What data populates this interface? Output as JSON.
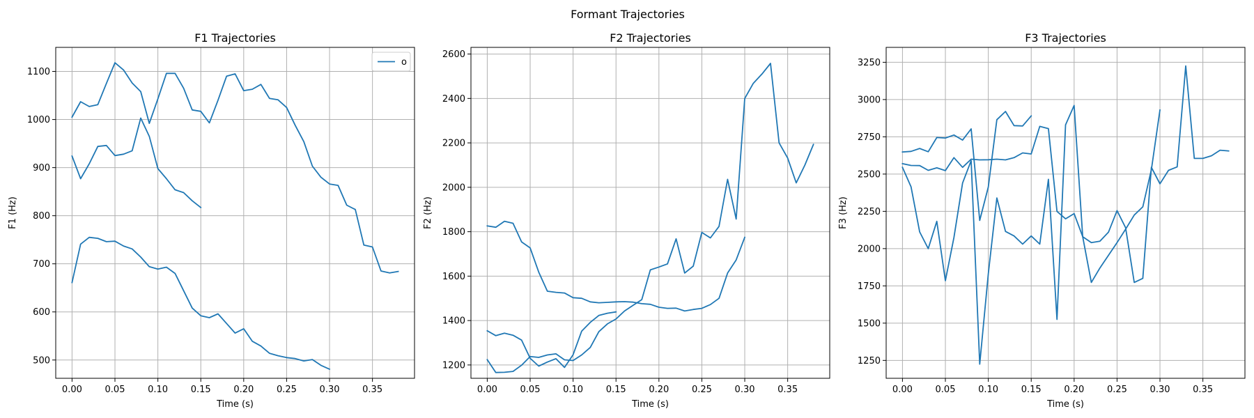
{
  "figure_title": "Formant Trajectories",
  "colors": {
    "series": "#1f77b4",
    "grid": "#b0b0b0"
  },
  "chart_data": [
    {
      "type": "line",
      "title": "F1 Trajectories",
      "xlabel": "Time (s)",
      "ylabel": "F1 (Hz)",
      "xlim": [
        -0.019,
        0.399
      ],
      "ylim": [
        462,
        1150
      ],
      "xticks": [
        0.0,
        0.05,
        0.1,
        0.15,
        0.2,
        0.25,
        0.3,
        0.35
      ],
      "xtick_labels": [
        "0.00",
        "0.05",
        "0.10",
        "0.15",
        "0.20",
        "0.25",
        "0.30",
        "0.35"
      ],
      "yticks": [
        500,
        600,
        700,
        800,
        900,
        1000,
        1100
      ],
      "ytick_labels": [
        "500",
        "600",
        "700",
        "800",
        "900",
        "1000",
        "1100"
      ],
      "grid": true,
      "legend": {
        "position": "top-right",
        "entries": [
          "o"
        ]
      },
      "series": [
        {
          "x": [
            0.0,
            0.01,
            0.02,
            0.03,
            0.04,
            0.05,
            0.06,
            0.07,
            0.08,
            0.09,
            0.1,
            0.11,
            0.12,
            0.13,
            0.14,
            0.15,
            0.16,
            0.17,
            0.18,
            0.19,
            0.2,
            0.21,
            0.22,
            0.23,
            0.24,
            0.25,
            0.26,
            0.27,
            0.28,
            0.29,
            0.3,
            0.31,
            0.32,
            0.33,
            0.34,
            0.35,
            0.36,
            0.37,
            0.38
          ],
          "y": [
            1005,
            1037,
            1027,
            1031,
            1075,
            1118,
            1103,
            1076,
            1058,
            992,
            1043,
            1096,
            1096,
            1065,
            1020,
            1017,
            993,
            1040,
            1090,
            1095,
            1060,
            1063,
            1073,
            1044,
            1041,
            1025,
            988,
            954,
            903,
            880,
            866,
            863,
            822,
            813,
            739,
            735,
            685,
            681,
            684
          ]
        },
        {
          "x": [
            0.0,
            0.01,
            0.02,
            0.03,
            0.04,
            0.05,
            0.06,
            0.07,
            0.08,
            0.09,
            0.1,
            0.11,
            0.12,
            0.13,
            0.14,
            0.15
          ],
          "y": [
            924,
            877,
            908,
            944,
            946,
            925,
            928,
            935,
            1003,
            965,
            898,
            877,
            854,
            848,
            831,
            817
          ]
        },
        {
          "x": [
            0.0,
            0.01,
            0.02,
            0.03,
            0.04,
            0.05,
            0.06,
            0.07,
            0.08,
            0.09,
            0.1,
            0.11,
            0.12,
            0.13,
            0.14,
            0.15,
            0.16,
            0.17,
            0.18,
            0.19,
            0.2,
            0.21,
            0.22,
            0.23,
            0.24,
            0.25,
            0.26,
            0.27,
            0.28,
            0.29,
            0.3
          ],
          "y": [
            661,
            741,
            755,
            753,
            746,
            747,
            737,
            731,
            714,
            694,
            689,
            693,
            680,
            644,
            608,
            592,
            588,
            596,
            576,
            556,
            565,
            539,
            529,
            514,
            509,
            505,
            503,
            498,
            501,
            489,
            481
          ]
        }
      ]
    },
    {
      "type": "line",
      "title": "F2 Trajectories",
      "xlabel": "Time (s)",
      "ylabel": "F2 (Hz)",
      "xlim": [
        -0.019,
        0.399
      ],
      "ylim": [
        1140,
        2630
      ],
      "xticks": [
        0.0,
        0.05,
        0.1,
        0.15,
        0.2,
        0.25,
        0.3,
        0.35
      ],
      "xtick_labels": [
        "0.00",
        "0.05",
        "0.10",
        "0.15",
        "0.20",
        "0.25",
        "0.30",
        "0.35"
      ],
      "yticks": [
        1200,
        1400,
        1600,
        1800,
        2000,
        2200,
        2400,
        2600
      ],
      "ytick_labels": [
        "1200",
        "1400",
        "1600",
        "1800",
        "2000",
        "2200",
        "2400",
        "2600"
      ],
      "grid": true,
      "series": [
        {
          "x": [
            0.0,
            0.01,
            0.02,
            0.03,
            0.04,
            0.05,
            0.06,
            0.07,
            0.08,
            0.09,
            0.1,
            0.11,
            0.12,
            0.13,
            0.14,
            0.15,
            0.16,
            0.17,
            0.18,
            0.19,
            0.2,
            0.21,
            0.22,
            0.23,
            0.24,
            0.25,
            0.26,
            0.27,
            0.28,
            0.29,
            0.3
          ],
          "y": [
            1826,
            1820,
            1847,
            1838,
            1754,
            1727,
            1618,
            1532,
            1527,
            1524,
            1503,
            1500,
            1484,
            1480,
            1482,
            1484,
            1485,
            1483,
            1476,
            1473,
            1460,
            1455,
            1456,
            1443,
            1450,
            1455,
            1472,
            1500,
            1614,
            1673,
            1775
          ]
        },
        {
          "x": [
            0.0,
            0.01,
            0.02,
            0.03,
            0.04,
            0.05,
            0.06,
            0.07,
            0.08,
            0.09,
            0.1,
            0.11,
            0.12,
            0.13,
            0.14,
            0.15
          ],
          "y": [
            1354,
            1332,
            1343,
            1334,
            1312,
            1230,
            1195,
            1213,
            1228,
            1189,
            1246,
            1352,
            1392,
            1423,
            1433,
            1439
          ]
        },
        {
          "x": [
            0.0,
            0.01,
            0.02,
            0.03,
            0.04,
            0.05,
            0.06,
            0.07,
            0.08,
            0.09,
            0.1,
            0.11,
            0.12,
            0.13,
            0.14,
            0.15,
            0.16,
            0.17,
            0.18,
            0.19,
            0.2,
            0.21,
            0.22,
            0.23,
            0.24,
            0.25,
            0.26,
            0.27,
            0.28,
            0.29,
            0.3,
            0.31,
            0.32,
            0.33,
            0.34,
            0.35,
            0.36,
            0.37,
            0.38
          ],
          "y": [
            1224,
            1166,
            1167,
            1171,
            1199,
            1238,
            1234,
            1245,
            1250,
            1223,
            1220,
            1245,
            1279,
            1350,
            1385,
            1407,
            1443,
            1469,
            1494,
            1628,
            1641,
            1655,
            1768,
            1614,
            1645,
            1797,
            1772,
            1824,
            2036,
            1857,
            2400,
            2468,
            2510,
            2558,
            2200,
            2132,
            2020,
            2100,
            2193
          ]
        }
      ]
    },
    {
      "type": "line",
      "title": "F3 Trajectories",
      "xlabel": "Time (s)",
      "ylabel": "F3 (Hz)",
      "xlim": [
        -0.019,
        0.399
      ],
      "ylim": [
        1130,
        3350
      ],
      "xticks": [
        0.0,
        0.05,
        0.1,
        0.15,
        0.2,
        0.25,
        0.3,
        0.35
      ],
      "xtick_labels": [
        "0.00",
        "0.05",
        "0.10",
        "0.15",
        "0.20",
        "0.25",
        "0.30",
        "0.35"
      ],
      "yticks": [
        1250,
        1500,
        1750,
        2000,
        2250,
        2500,
        2750,
        3000,
        3250
      ],
      "ytick_labels": [
        "1250",
        "1500",
        "1750",
        "2000",
        "2250",
        "2500",
        "2750",
        "3000",
        "3250"
      ],
      "grid": true,
      "series": [
        {
          "x": [
            0.0,
            0.01,
            0.02,
            0.03,
            0.04,
            0.05,
            0.06,
            0.07,
            0.08,
            0.09,
            0.1,
            0.11,
            0.12,
            0.13,
            0.14,
            0.15
          ],
          "y": [
            2648,
            2652,
            2672,
            2650,
            2745,
            2742,
            2762,
            2728,
            2803,
            2189,
            2413,
            2865,
            2920,
            2825,
            2823,
            2890
          ]
        },
        {
          "x": [
            0.0,
            0.01,
            0.02,
            0.03,
            0.04,
            0.05,
            0.06,
            0.07,
            0.08,
            0.09,
            0.1,
            0.11,
            0.12,
            0.13,
            0.14,
            0.15,
            0.16,
            0.17,
            0.18,
            0.19,
            0.2,
            0.21,
            0.22,
            0.23,
            0.24,
            0.25,
            0.26,
            0.27,
            0.28,
            0.29,
            0.3,
            0.31,
            0.32,
            0.33,
            0.34,
            0.35,
            0.36,
            0.37,
            0.38
          ],
          "y": [
            2545,
            2415,
            2112,
            2000,
            2183,
            1785,
            2075,
            2440,
            2590,
            1225,
            1830,
            2340,
            2115,
            2085,
            2030,
            2085,
            2030,
            2465,
            1525,
            2830,
            2960,
            2080,
            2040,
            2050,
            2110,
            2255,
            2140,
            1773,
            1800,
            2545,
            2435,
            2525,
            2548,
            3225,
            2605,
            2605,
            2623,
            2660,
            2655
          ]
        },
        {
          "x": [
            0.0,
            0.01,
            0.02,
            0.03,
            0.04,
            0.05,
            0.06,
            0.07,
            0.08,
            0.09,
            0.1,
            0.11,
            0.12,
            0.13,
            0.14,
            0.15,
            0.16,
            0.17,
            0.18,
            0.19,
            0.2,
            0.21,
            0.22,
            0.23,
            0.24,
            0.25,
            0.26,
            0.27,
            0.28,
            0.29,
            0.3
          ],
          "y": [
            2570,
            2558,
            2557,
            2525,
            2542,
            2523,
            2610,
            2545,
            2600,
            2595,
            2596,
            2600,
            2595,
            2610,
            2642,
            2635,
            2820,
            2805,
            2250,
            2200,
            2235,
            2080,
            1773,
            1870,
            1955,
            2040,
            2130,
            2225,
            2280,
            2530,
            2930
          ]
        }
      ]
    }
  ]
}
